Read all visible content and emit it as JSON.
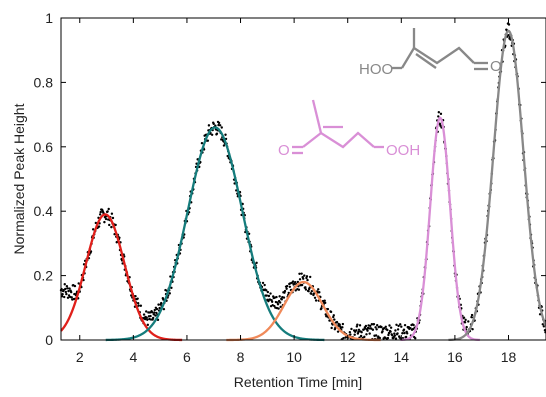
{
  "chart_data": {
    "type": "scatter",
    "title": "",
    "xlabel": "Retention Time [min]",
    "ylabel": "Normalized Peak Height",
    "xlim": [
      1.3,
      19.4
    ],
    "ylim": [
      0,
      1
    ],
    "xticks": [
      2,
      4,
      6,
      8,
      10,
      12,
      14,
      16,
      18
    ],
    "yticks": [
      0,
      0.2,
      0.4,
      0.6,
      0.8,
      1
    ],
    "xtick_labels": [
      "2",
      "4",
      "6",
      "8",
      "10",
      "12",
      "14",
      "16",
      "18"
    ],
    "ytick_labels": [
      "0",
      "0.2",
      "0.4",
      "0.6",
      "0.8",
      "1"
    ],
    "grid": false,
    "baseline": 0.13,
    "series": [
      {
        "type": "scatter",
        "description": "measured chromatogram (black dots)",
        "color": "#000000"
      },
      {
        "type": "gaussian-fit",
        "color": "#e0201b",
        "center": 2.95,
        "height": 0.39,
        "sigma": 0.72
      },
      {
        "type": "gaussian-fit",
        "color": "#157c7c",
        "center": 7.05,
        "height": 0.66,
        "sigma": 1.02
      },
      {
        "type": "gaussian-fit",
        "color": "#f08a5a",
        "center": 10.35,
        "height": 0.18,
        "sigma": 0.72
      },
      {
        "type": "gaussian-fit",
        "color": "#d98fd6",
        "center": 15.45,
        "height": 0.69,
        "sigma": 0.37
      },
      {
        "type": "gaussian-fit",
        "color": "#888888",
        "center": 18.0,
        "height": 0.96,
        "sigma": 0.56
      }
    ],
    "annotations": [
      {
        "text_left": "HOO",
        "text_right": "O",
        "color": "#888888"
      },
      {
        "text_left": "O",
        "text_right": "OOH",
        "color": "#d98fd6"
      }
    ]
  }
}
